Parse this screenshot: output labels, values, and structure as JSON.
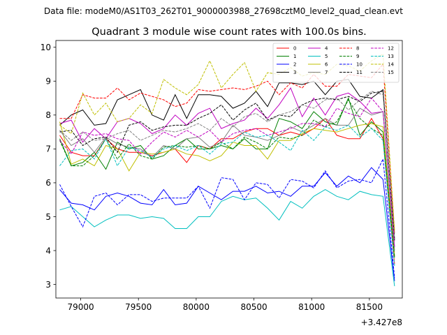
{
  "suptitle": "Data file: modeM0/AS1T03_262T01_9000003988_27698cztM0_level2_quad_clean.evt",
  "chart_data": {
    "type": "line",
    "title": "Quadrant 3 module wise count rates with 100.0s bins.",
    "xlabel": "",
    "ylabel": "",
    "x_offset_label": "+3.427e8",
    "xlim": [
      78785,
      81785
    ],
    "ylim": [
      2.6,
      10.2
    ],
    "xticks": [
      79000,
      79500,
      80000,
      80500,
      81000,
      81500
    ],
    "xtick_labels": [
      "79000",
      "79500",
      "80000",
      "80500",
      "81000",
      "81500"
    ],
    "yticks": [
      3,
      4,
      5,
      6,
      7,
      8,
      9,
      10
    ],
    "ytick_labels": [
      "3",
      "4",
      "5",
      "6",
      "7",
      "8",
      "9",
      "10"
    ],
    "grid": false,
    "legend_position": "top-right",
    "x": [
      78818,
      78918,
      79018,
      79118,
      79218,
      79318,
      79418,
      79518,
      79618,
      79718,
      79818,
      79918,
      80018,
      80118,
      80218,
      80318,
      80418,
      80518,
      80618,
      80718,
      80818,
      80918,
      81018,
      81118,
      81218,
      81318,
      81418,
      81518,
      81618,
      81718
    ],
    "series": [
      {
        "name": "0",
        "color": "#ff0000",
        "dash": "solid",
        "values": [
          7.4,
          6.9,
          6.8,
          6.8,
          7.3,
          7.0,
          6.9,
          6.9,
          6.8,
          6.9,
          7.0,
          6.6,
          7.1,
          7.0,
          7.3,
          7.3,
          7.5,
          7.6,
          7.6,
          7.4,
          7.5,
          7.4,
          7.6,
          7.9,
          7.4,
          7.3,
          7.3,
          7.9,
          7.3,
          3.6
        ]
      },
      {
        "name": "1",
        "color": "#008000",
        "dash": "solid",
        "values": [
          7.3,
          6.5,
          6.6,
          6.9,
          6.4,
          7.2,
          7.0,
          7.1,
          6.7,
          6.8,
          7.1,
          7.3,
          7.0,
          7.0,
          7.1,
          7.0,
          7.3,
          7.0,
          7.0,
          7.9,
          7.8,
          7.6,
          8.1,
          7.8,
          7.7,
          8.5,
          7.4,
          7.8,
          7.5,
          3.8
        ]
      },
      {
        "name": "2",
        "color": "#0000ff",
        "dash": "solid",
        "values": [
          5.8,
          5.4,
          5.35,
          5.2,
          5.6,
          5.7,
          5.6,
          5.4,
          5.35,
          5.8,
          5.35,
          5.4,
          5.9,
          5.7,
          5.5,
          5.75,
          5.75,
          5.9,
          5.7,
          5.75,
          5.6,
          5.9,
          5.9,
          6.3,
          5.9,
          6.2,
          6.0,
          6.45,
          6.1,
          3.1
        ]
      },
      {
        "name": "3",
        "color": "#000000",
        "dash": "solid",
        "values": [
          7.7,
          8.0,
          8.15,
          7.7,
          7.75,
          8.45,
          8.6,
          8.75,
          8.0,
          7.85,
          8.6,
          7.9,
          8.6,
          8.6,
          8.55,
          8.2,
          8.35,
          8.7,
          8.25,
          8.95,
          8.95,
          8.9,
          9.0,
          8.6,
          9.0,
          9.05,
          8.55,
          8.5,
          8.75,
          4.3
        ]
      },
      {
        "name": "4",
        "color": "#c000c0",
        "dash": "solid",
        "values": [
          7.75,
          7.85,
          7.2,
          7.6,
          7.3,
          7.8,
          7.9,
          7.75,
          7.45,
          7.6,
          8.0,
          7.7,
          8.05,
          8.2,
          7.6,
          7.75,
          7.85,
          8.2,
          7.9,
          8.3,
          8.8,
          7.95,
          8.5,
          8.0,
          8.55,
          8.65,
          8.4,
          8.05,
          8.1,
          4.1
        ]
      },
      {
        "name": "5",
        "color": "#00bfbf",
        "dash": "solid",
        "values": [
          5.2,
          5.3,
          5.0,
          4.7,
          4.9,
          5.05,
          5.05,
          4.95,
          5.0,
          4.95,
          4.65,
          4.65,
          5.0,
          5.0,
          5.45,
          5.6,
          5.5,
          5.55,
          5.25,
          4.9,
          5.45,
          5.25,
          5.6,
          5.8,
          5.6,
          5.5,
          5.75,
          5.65,
          5.6,
          2.95
        ]
      },
      {
        "name": "6",
        "color": "#bfbf00",
        "dash": "solid",
        "values": [
          7.8,
          6.55,
          6.7,
          6.5,
          7.1,
          7.0,
          6.35,
          6.9,
          6.85,
          6.9,
          7.0,
          6.85,
          6.8,
          6.65,
          6.8,
          7.2,
          7.1,
          7.1,
          6.7,
          7.25,
          7.25,
          7.45,
          7.6,
          7.55,
          7.5,
          7.6,
          7.7,
          7.75,
          7.65,
          3.85
        ]
      },
      {
        "name": "7",
        "color": "#808080",
        "dash": "solid",
        "values": [
          7.55,
          7.1,
          7.3,
          6.9,
          7.35,
          7.15,
          7.05,
          7.0,
          6.75,
          7.1,
          7.0,
          7.3,
          7.35,
          7.05,
          7.2,
          7.7,
          7.4,
          7.35,
          7.25,
          7.4,
          7.65,
          7.5,
          7.7,
          7.9,
          7.7,
          7.7,
          8.2,
          8.0,
          8.1,
          4.0
        ]
      },
      {
        "name": "8",
        "color": "#ff0000",
        "dash": "dashed",
        "values": [
          7.9,
          7.9,
          8.6,
          8.5,
          8.5,
          8.8,
          8.45,
          8.65,
          8.55,
          8.45,
          8.25,
          8.35,
          8.75,
          8.7,
          8.75,
          8.8,
          8.75,
          8.85,
          9.0,
          8.6,
          8.95,
          8.8,
          9.2,
          8.85,
          8.85,
          9.2,
          9.15,
          9.1,
          9.5,
          4.5
        ]
      },
      {
        "name": "9",
        "color": "#008000",
        "dash": "dashed",
        "values": [
          7.25,
          6.5,
          6.5,
          6.8,
          7.3,
          6.7,
          7.15,
          6.8,
          6.7,
          7.05,
          7.1,
          7.05,
          7.1,
          7.0,
          7.2,
          7.0,
          7.35,
          7.2,
          7.0,
          7.35,
          7.3,
          7.4,
          7.85,
          7.65,
          7.8,
          8.45,
          7.9,
          7.6,
          7.4,
          3.8
        ]
      },
      {
        "name": "10",
        "color": "#0000ff",
        "dash": "dashed",
        "values": [
          5.95,
          5.3,
          4.7,
          5.6,
          5.7,
          5.35,
          5.65,
          5.65,
          5.45,
          5.55,
          5.55,
          5.55,
          5.9,
          5.25,
          6.15,
          6.1,
          5.5,
          6.0,
          5.95,
          5.55,
          6.1,
          6.05,
          5.85,
          6.35,
          5.85,
          6.05,
          6.1,
          6.0,
          6.7,
          3.2
        ]
      },
      {
        "name": "11",
        "color": "#000000",
        "dash": "dashed",
        "values": [
          7.5,
          7.55,
          7.1,
          7.3,
          7.35,
          6.9,
          7.7,
          7.8,
          7.55,
          7.65,
          7.7,
          7.7,
          7.9,
          8.05,
          8.3,
          7.85,
          8.15,
          8.35,
          7.85,
          8.0,
          7.95,
          8.3,
          8.45,
          8.5,
          8.45,
          8.55,
          8.4,
          8.65,
          8.7,
          4.35
        ]
      },
      {
        "name": "12",
        "color": "#c000c0",
        "dash": "dashed",
        "values": [
          7.25,
          6.85,
          7.5,
          7.4,
          7.45,
          7.3,
          7.25,
          6.85,
          7.2,
          7.5,
          7.35,
          7.55,
          7.35,
          7.55,
          7.2,
          7.45,
          7.55,
          7.6,
          7.4,
          7.5,
          7.6,
          7.75,
          7.75,
          7.65,
          8.2,
          8.05,
          7.95,
          8.5,
          8.1,
          4.1
        ]
      },
      {
        "name": "13",
        "color": "#00bfbf",
        "dash": "dashed",
        "values": [
          6.5,
          6.95,
          7.0,
          6.7,
          7.3,
          6.5,
          7.05,
          6.95,
          6.75,
          7.0,
          7.1,
          6.95,
          7.1,
          6.85,
          7.15,
          7.2,
          7.5,
          7.35,
          7.4,
          7.2,
          6.95,
          7.55,
          7.25,
          7.65,
          7.55,
          7.7,
          7.35,
          7.6,
          7.25,
          3.55
        ]
      },
      {
        "name": "14",
        "color": "#bfbf00",
        "dash": "dashed",
        "values": [
          7.7,
          7.45,
          8.65,
          8.0,
          8.35,
          7.8,
          7.9,
          8.3,
          8.05,
          9.05,
          8.8,
          8.6,
          8.9,
          9.6,
          8.8,
          9.2,
          9.55,
          8.7,
          9.25,
          9.2,
          9.4,
          9.15,
          9.25,
          9.2,
          9.5,
          9.45,
          9.3,
          9.6,
          9.8,
          4.6
        ]
      },
      {
        "name": "15",
        "color": "#808080",
        "dash": "dashed",
        "values": [
          7.55,
          7.25,
          7.5,
          7.25,
          7.3,
          7.45,
          7.55,
          7.25,
          7.4,
          7.55,
          7.5,
          7.6,
          7.75,
          7.55,
          7.9,
          7.65,
          7.95,
          8.05,
          7.8,
          8.0,
          8.1,
          8.3,
          8.2,
          8.45,
          8.5,
          8.15,
          8.45,
          8.7,
          8.6,
          4.35
        ]
      }
    ]
  }
}
